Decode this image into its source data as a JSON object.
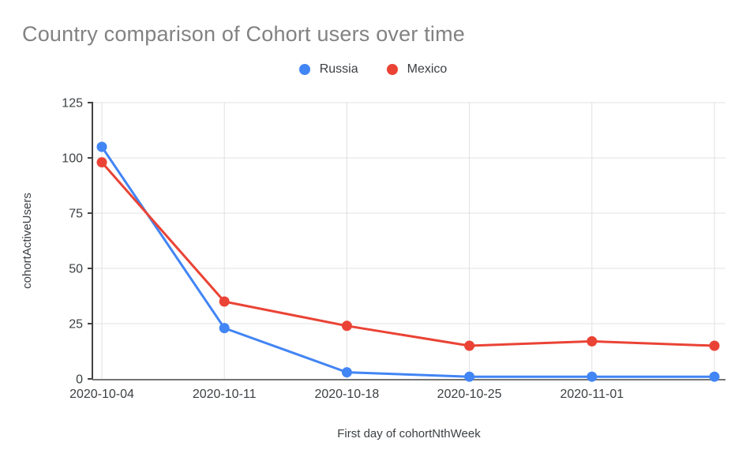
{
  "window": {
    "background": "#ffffff"
  },
  "chart_data": {
    "type": "line",
    "title": "Country comparison of Cohort users over time",
    "xlabel": "First day of cohortNthWeek",
    "ylabel": "cohortActiveUsers",
    "x": [
      "2020-10-04",
      "2020-10-11",
      "2020-10-18",
      "2020-10-25",
      "2020-11-01",
      ""
    ],
    "series": [
      {
        "name": "Russia",
        "color": "#4285F4",
        "values": [
          105,
          23,
          3,
          1,
          1,
          1
        ]
      },
      {
        "name": "Mexico",
        "color": "#EA4335",
        "values": [
          98,
          35,
          24,
          15,
          17,
          15
        ]
      }
    ],
    "ylim": [
      0,
      125
    ],
    "y_ticks": [
      0,
      25,
      50,
      75,
      100,
      125
    ],
    "grid": true,
    "legend_position": "top",
    "styles": {
      "title_color": "#828282",
      "label_color": "#3c4043",
      "grid_color": "#e0e0e0",
      "y_axis_color": "#424242",
      "x_axis_color": "#757575"
    }
  }
}
